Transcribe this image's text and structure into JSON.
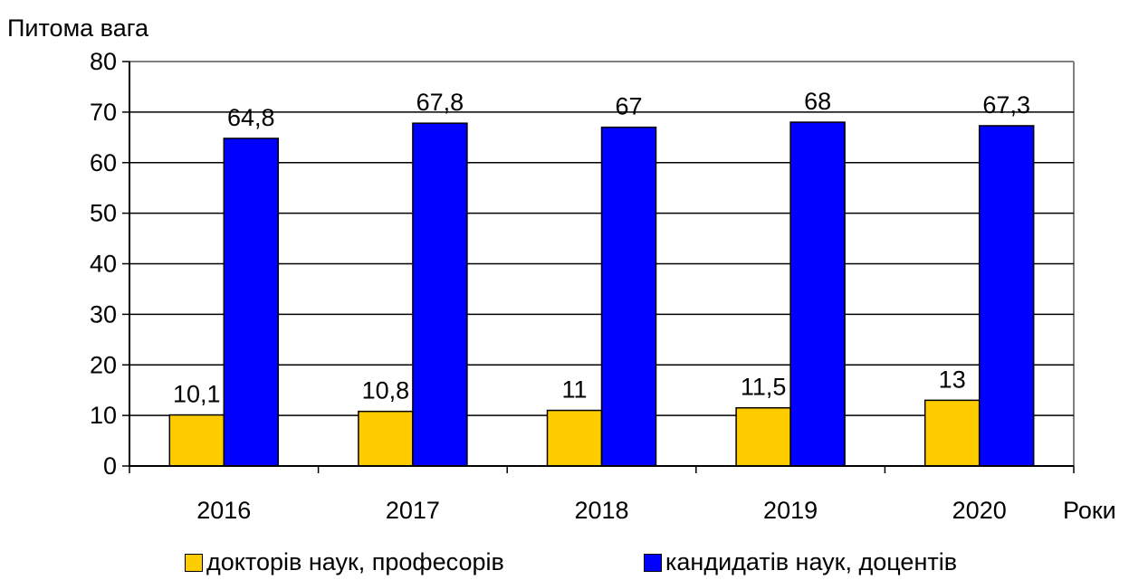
{
  "chart_data": {
    "type": "bar",
    "ylabel": "Питома вага",
    "xlabel": "Роки",
    "ylim": [
      0,
      80
    ],
    "yticks": [
      0,
      10,
      20,
      30,
      40,
      50,
      60,
      70,
      80
    ],
    "categories": [
      "2016",
      "2017",
      "2018",
      "2019",
      "2020"
    ],
    "series": [
      {
        "name": "докторів наук, професорів",
        "color": "#ffcc00",
        "values": [
          10.1,
          10.8,
          11,
          11.5,
          13
        ],
        "labels": [
          "10,1",
          "10,8",
          "11",
          "11,5",
          "13"
        ]
      },
      {
        "name": "кандидатів наук, доцентів",
        "color": "#0000ff",
        "values": [
          64.8,
          67.8,
          67,
          68,
          67.3
        ],
        "labels": [
          "64,8",
          "67,8",
          "67",
          "68",
          "67,3"
        ]
      }
    ],
    "grid": true,
    "legend_position": "bottom"
  }
}
